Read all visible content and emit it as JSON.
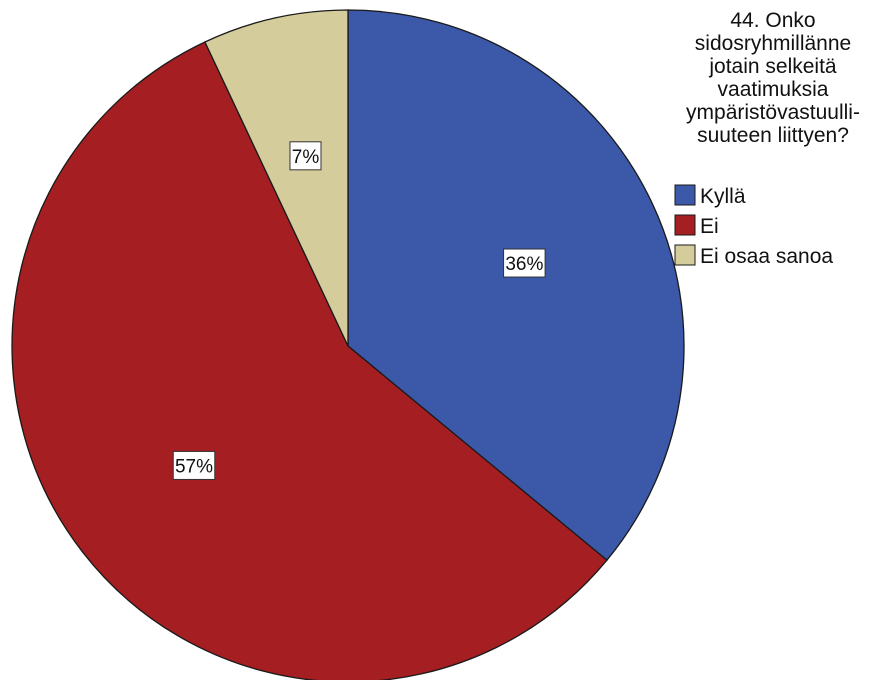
{
  "chart_data": {
    "type": "pie",
    "title": "",
    "legend_title": [
      "44. Onko",
      "sidosryhmillänne",
      "jotain selkeitä",
      "vaatimuksia",
      "ympäristövastuulli-",
      "suuteen liittyen?"
    ],
    "legend_position": "top-right",
    "start_angle_deg": 0,
    "direction": "clockwise",
    "categories": [
      "Kyllä",
      "Ei",
      "Ei osaa sanoa"
    ],
    "values": [
      36,
      57,
      7
    ],
    "labels": [
      "36%",
      "57%",
      "7%"
    ],
    "colors": [
      "#3c58a9",
      "#a41e22",
      "#d5cc9c"
    ]
  }
}
